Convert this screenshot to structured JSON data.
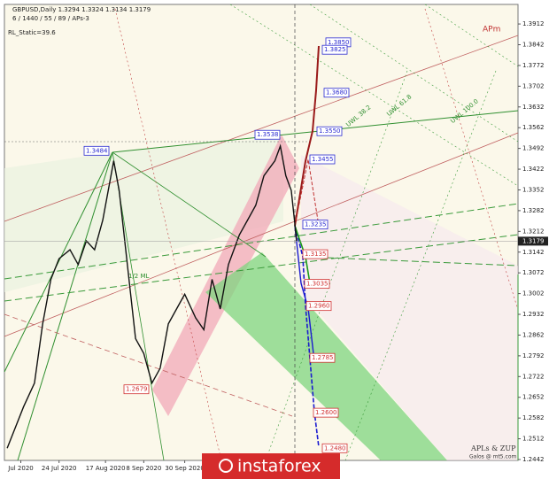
{
  "chart_data": {
    "type": "line",
    "title": "GBPUSD,Daily 1.3294 1.3324 1.3134 1.3179",
    "subtitle": "6 / 1440 / 55 / 89 / APs-3",
    "indicator": "RL_Static=39.6",
    "x": [
      0,
      3,
      6,
      10,
      13,
      16,
      19,
      23,
      26,
      29,
      32,
      35,
      39,
      41,
      44,
      47,
      50,
      53,
      56,
      59,
      62,
      65,
      69,
      72,
      75,
      78,
      81,
      85,
      88,
      91,
      94,
      98,
      100,
      102,
      104,
      106
    ],
    "series": [
      {
        "name": "GBPUSD",
        "color": "#111111",
        "values": [
          1.248,
          1.255,
          1.262,
          1.27,
          1.29,
          1.305,
          1.312,
          1.315,
          1.31,
          1.318,
          1.315,
          1.325,
          1.345,
          1.335,
          1.31,
          1.285,
          1.28,
          1.27,
          1.275,
          1.29,
          1.295,
          1.3,
          1.292,
          1.288,
          1.305,
          1.295,
          1.31,
          1.32,
          1.325,
          1.33,
          1.34,
          1.345,
          1.35,
          1.34,
          1.335,
          1.3179
        ]
      }
    ],
    "current_price": 1.3179,
    "xlim": [
      -1,
      187
    ],
    "xticks": [
      {
        "value": 5,
        "label": "Jul 2020"
      },
      {
        "value": 19,
        "label": "24 Jul 2020"
      },
      {
        "value": 36,
        "label": "17 Aug 2020"
      },
      {
        "value": 50,
        "label": "8 Sep 2020"
      },
      {
        "value": 65,
        "label": "30 Sep 2020"
      }
    ],
    "ylim": [
      1.2439,
      1.3978
    ],
    "yticks": [
      1.3912,
      1.3842,
      1.3772,
      1.3702,
      1.3632,
      1.3562,
      1.3492,
      1.3422,
      1.3352,
      1.3282,
      1.3212,
      1.3142,
      1.3072,
      1.3002,
      1.2932,
      1.2862,
      1.2792,
      1.2722,
      1.2652,
      1.2582,
      1.2512,
      1.2442
    ],
    "levels": [
      {
        "value": 1.385,
        "label": "1.3850",
        "color": "#2a2ad0"
      },
      {
        "value": 1.3825,
        "label": "1.3825",
        "color": "#2a2ad0"
      },
      {
        "value": 1.368,
        "label": "1.3680",
        "color": "#2a2ad0"
      },
      {
        "value": 1.355,
        "label": "1.3550",
        "color": "#2a2ad0"
      },
      {
        "value": 1.3455,
        "label": "1.3455",
        "color": "#2a2ad0"
      },
      {
        "value": 1.3235,
        "label": "1.3235",
        "color": "#2a2ad0"
      },
      {
        "value": 1.3135,
        "label": "1.3135",
        "color": "#d03030"
      },
      {
        "value": 1.3035,
        "label": "1.3035",
        "color": "#d03030"
      },
      {
        "value": 1.296,
        "label": "1.2960",
        "color": "#d03030"
      },
      {
        "value": 1.2785,
        "label": "1.2785",
        "color": "#d03030"
      },
      {
        "value": 1.26,
        "label": "1.2600",
        "color": "#d03030"
      },
      {
        "value": 1.248,
        "label": "1.2480",
        "color": "#d03030"
      },
      {
        "value": 1.3538,
        "label": "1.3538",
        "color": "#2a2ad0"
      },
      {
        "value": 1.3484,
        "label": "1.3484",
        "color": "#2a2ad0"
      },
      {
        "value": 1.2679,
        "label": "1.2679",
        "color": "#d03030"
      }
    ],
    "annotations": [
      "APm",
      "1/2 ML",
      "UWL 38.2",
      "UWL 61.8",
      "UWL 100.0"
    ],
    "credits": [
      "APLs & ZUP",
      "Galos @ mt5.com"
    ],
    "watermark": "instaforex"
  }
}
